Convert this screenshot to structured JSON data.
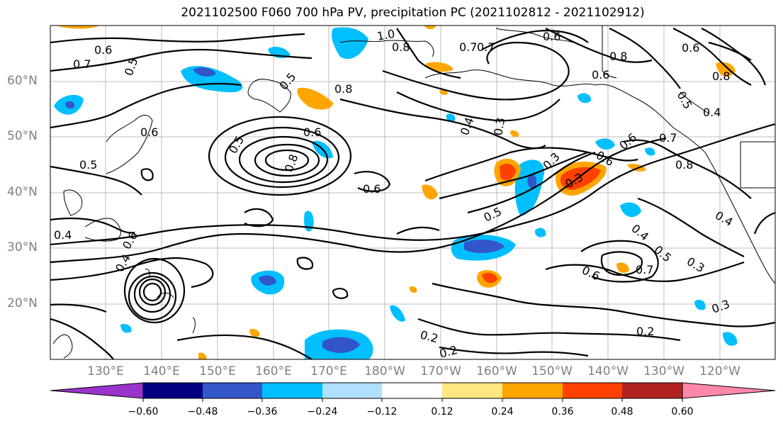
{
  "title": "2021102500 F060 700 hPa PV, precipitation PC (2021102812 - 2021102912)",
  "lat_labels": [
    "60°N",
    "50°N",
    "40°N",
    "30°N",
    "20°N"
  ],
  "lon_labels": [
    "130°E",
    "140°E",
    "150°E",
    "160°E",
    "170°E",
    "180°W",
    "170°W",
    "160°W",
    "150°W",
    "140°W",
    "130°W",
    "120°W"
  ],
  "colorbar": {
    "tick_labels": [
      "−0.60",
      "−0.48",
      "−0.36",
      "−0.24",
      "−0.12",
      "0.12",
      "0.24",
      "0.36",
      "0.48",
      "0.60"
    ],
    "colors": [
      "#9933cc",
      "#000080",
      "#3355cc",
      "#00bfff",
      "#b0e0ff",
      "#ffffff",
      "#ffe680",
      "#ffa500",
      "#ff4000",
      "#b22222",
      "#ff88aa"
    ],
    "bounds": [
      -0.6,
      -0.48,
      -0.36,
      -0.24,
      -0.12,
      0.12,
      0.24,
      0.36,
      0.48,
      0.6
    ]
  },
  "contour_labels": [
    "0.6",
    "0.7",
    "0.5",
    "0.6",
    "0.5",
    "0.4",
    "0.4",
    "0.6",
    "0.6",
    "0.8",
    "0.5",
    "0.6",
    "0.5",
    "0.4",
    "0.7",
    "0.3",
    "0.6",
    "0.7",
    "0.8",
    "0.8",
    "0.6",
    "0.6",
    "0.8",
    "0.5",
    "0.4",
    "0.6",
    "0.7",
    "0.8",
    "0.5",
    "0.6",
    "0.4",
    "0.4",
    "0.5",
    "0.3",
    "0.6",
    "0.7",
    "0.3",
    "0.2",
    "0.2",
    "0.2",
    "0.3",
    "1.0",
    "0.8",
    "0.3"
  ]
}
